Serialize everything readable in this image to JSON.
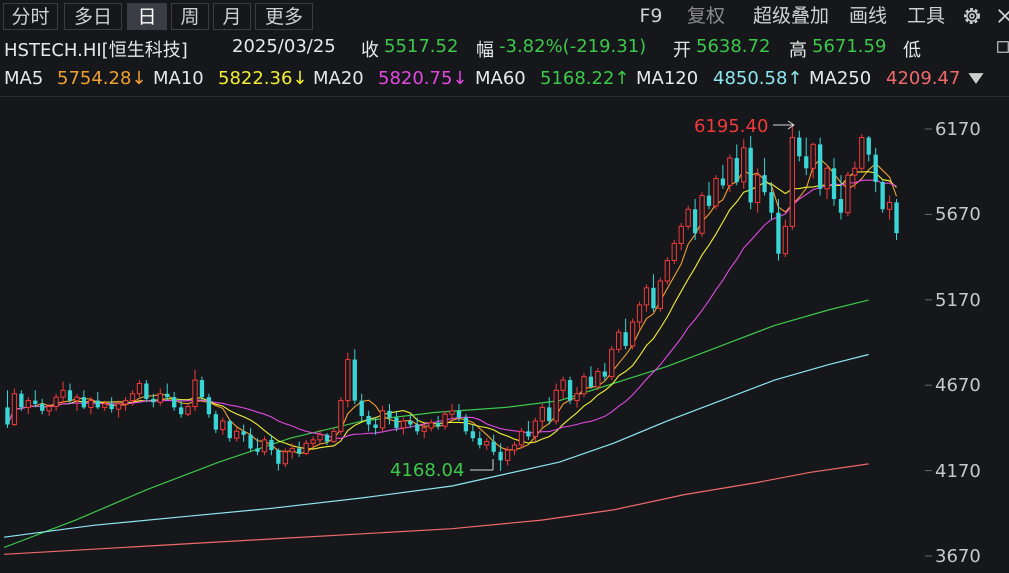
{
  "toolbar": {
    "period_tabs": [
      {
        "label": "分时",
        "active": false
      },
      {
        "label": "多日",
        "active": false
      },
      {
        "label": "日",
        "active": true
      },
      {
        "label": "周",
        "active": false
      },
      {
        "label": "月",
        "active": false
      },
      {
        "label": "更多",
        "active": false
      }
    ],
    "right_buttons": [
      {
        "label": "F9",
        "dim": false
      },
      {
        "label": "复权",
        "dim": true
      },
      {
        "label": "超级叠加",
        "dim": false
      },
      {
        "label": "画线",
        "dim": false
      },
      {
        "label": "工具",
        "dim": false
      }
    ],
    "gear_icon": "gear-icon",
    "close_icon": "close-icon"
  },
  "quote": {
    "symbol": "HSTECH.HI[恒生科技]",
    "date": "2025/03/25",
    "close_label": "收",
    "close": "5517.52",
    "change_label": "幅",
    "change": "-3.82%(-219.31)",
    "open_label": "开",
    "open": "5638.72",
    "high_label": "高",
    "high": "5671.59",
    "low_label": "低",
    "expand_icon": "expand-icon"
  },
  "ma_line": [
    {
      "label": "MA5",
      "value": "5754.28↓",
      "color": "#f0a030"
    },
    {
      "label": "MA10",
      "value": "5822.36↓",
      "color": "#f2ee34"
    },
    {
      "label": "MA20",
      "value": "5820.75↓",
      "color": "#e04ae0"
    },
    {
      "label": "MA60",
      "value": "5168.22↑",
      "color": "#3cc84a"
    },
    {
      "label": "MA120",
      "value": "4850.58↑",
      "color": "#8ee6f0"
    },
    {
      "label": "MA250",
      "value": "4209.47",
      "color": "#f06a6a"
    }
  ],
  "ma_dropdown_icon": "dropdown-triangle-icon",
  "chart_data": {
    "type": "candlestick",
    "y_ticks": [
      "6170",
      "5670",
      "5170",
      "4670",
      "4170",
      "3670"
    ],
    "ylim": [
      3670,
      6170
    ],
    "up_color": "#f03a3a",
    "down_color": "#3ad6d6",
    "annotations": [
      {
        "text": "6195.40",
        "color": "#f03a3a"
      },
      {
        "text": "4168.04",
        "color": "#3cc84a"
      }
    ],
    "ohlc": [
      [
        4540,
        4640,
        4420,
        4440
      ],
      [
        4440,
        4650,
        4430,
        4620
      ],
      [
        4620,
        4640,
        4520,
        4540
      ],
      [
        4540,
        4600,
        4500,
        4580
      ],
      [
        4580,
        4640,
        4540,
        4560
      ],
      [
        4560,
        4590,
        4500,
        4520
      ],
      [
        4520,
        4560,
        4490,
        4545
      ],
      [
        4545,
        4620,
        4520,
        4600
      ],
      [
        4600,
        4690,
        4560,
        4640
      ],
      [
        4640,
        4680,
        4560,
        4580
      ],
      [
        4580,
        4620,
        4520,
        4600
      ],
      [
        4600,
        4640,
        4530,
        4540
      ],
      [
        4540,
        4600,
        4500,
        4580
      ],
      [
        4580,
        4630,
        4530,
        4540
      ],
      [
        4540,
        4580,
        4520,
        4560
      ],
      [
        4560,
        4600,
        4510,
        4530
      ],
      [
        4530,
        4580,
        4480,
        4560
      ],
      [
        4560,
        4600,
        4520,
        4580
      ],
      [
        4580,
        4640,
        4550,
        4620
      ],
      [
        4620,
        4700,
        4600,
        4680
      ],
      [
        4680,
        4700,
        4570,
        4590
      ],
      [
        4590,
        4620,
        4540,
        4570
      ],
      [
        4570,
        4650,
        4550,
        4620
      ],
      [
        4620,
        4680,
        4580,
        4600
      ],
      [
        4600,
        4630,
        4520,
        4540
      ],
      [
        4540,
        4580,
        4480,
        4500
      ],
      [
        4500,
        4560,
        4490,
        4545
      ],
      [
        4545,
        4760,
        4520,
        4700
      ],
      [
        4700,
        4720,
        4580,
        4600
      ],
      [
        4600,
        4620,
        4480,
        4500
      ],
      [
        4500,
        4520,
        4390,
        4410
      ],
      [
        4410,
        4480,
        4380,
        4460
      ],
      [
        4460,
        4470,
        4340,
        4360
      ],
      [
        4360,
        4420,
        4340,
        4400
      ],
      [
        4400,
        4440,
        4340,
        4380
      ],
      [
        4380,
        4420,
        4280,
        4300
      ],
      [
        4300,
        4360,
        4260,
        4280
      ],
      [
        4280,
        4370,
        4260,
        4350
      ],
      [
        4350,
        4380,
        4260,
        4290
      ],
      [
        4290,
        4300,
        4170,
        4210
      ],
      [
        4210,
        4300,
        4190,
        4280
      ],
      [
        4280,
        4330,
        4240,
        4300
      ],
      [
        4300,
        4340,
        4250,
        4270
      ],
      [
        4270,
        4350,
        4260,
        4330
      ],
      [
        4330,
        4370,
        4300,
        4350
      ],
      [
        4350,
        4410,
        4330,
        4380
      ],
      [
        4380,
        4390,
        4320,
        4340
      ],
      [
        4340,
        4420,
        4330,
        4400
      ],
      [
        4400,
        4600,
        4380,
        4580
      ],
      [
        4580,
        4860,
        4540,
        4820
      ],
      [
        4820,
        4880,
        4560,
        4580
      ],
      [
        4580,
        4620,
        4460,
        4490
      ],
      [
        4490,
        4520,
        4400,
        4440
      ],
      [
        4440,
        4480,
        4380,
        4420
      ],
      [
        4420,
        4550,
        4400,
        4520
      ],
      [
        4520,
        4560,
        4440,
        4480
      ],
      [
        4480,
        4520,
        4400,
        4420
      ],
      [
        4420,
        4480,
        4380,
        4460
      ],
      [
        4460,
        4500,
        4420,
        4440
      ],
      [
        4440,
        4480,
        4380,
        4400
      ],
      [
        4400,
        4440,
        4360,
        4420
      ],
      [
        4420,
        4470,
        4400,
        4450
      ],
      [
        4450,
        4490,
        4410,
        4430
      ],
      [
        4430,
        4520,
        4410,
        4500
      ],
      [
        4500,
        4560,
        4470,
        4520
      ],
      [
        4520,
        4560,
        4460,
        4480
      ],
      [
        4480,
        4500,
        4380,
        4400
      ],
      [
        4400,
        4440,
        4340,
        4360
      ],
      [
        4360,
        4400,
        4300,
        4320
      ],
      [
        4320,
        4360,
        4290,
        4340
      ],
      [
        4340,
        4380,
        4260,
        4280
      ],
      [
        4280,
        4330,
        4168,
        4230
      ],
      [
        4230,
        4310,
        4200,
        4290
      ],
      [
        4290,
        4340,
        4260,
        4320
      ],
      [
        4320,
        4420,
        4300,
        4400
      ],
      [
        4400,
        4460,
        4350,
        4370
      ],
      [
        4370,
        4480,
        4340,
        4460
      ],
      [
        4460,
        4560,
        4420,
        4540
      ],
      [
        4540,
        4600,
        4440,
        4460
      ],
      [
        4460,
        4680,
        4440,
        4640
      ],
      [
        4640,
        4720,
        4590,
        4700
      ],
      [
        4700,
        4720,
        4560,
        4580
      ],
      [
        4580,
        4660,
        4540,
        4620
      ],
      [
        4620,
        4740,
        4600,
        4720
      ],
      [
        4720,
        4780,
        4650,
        4660
      ],
      [
        4660,
        4770,
        4640,
        4750
      ],
      [
        4750,
        4800,
        4700,
        4720
      ],
      [
        4720,
        4900,
        4700,
        4880
      ],
      [
        4880,
        5000,
        4860,
        4980
      ],
      [
        4980,
        5060,
        4880,
        4900
      ],
      [
        4900,
        5060,
        4880,
        5040
      ],
      [
        5040,
        5160,
        5000,
        5140
      ],
      [
        5140,
        5260,
        5100,
        5240
      ],
      [
        5240,
        5320,
        5100,
        5120
      ],
      [
        5120,
        5300,
        5100,
        5280
      ],
      [
        5280,
        5420,
        5260,
        5400
      ],
      [
        5400,
        5520,
        5380,
        5500
      ],
      [
        5500,
        5620,
        5460,
        5600
      ],
      [
        5600,
        5720,
        5580,
        5700
      ],
      [
        5700,
        5760,
        5520,
        5560
      ],
      [
        5560,
        5800,
        5540,
        5780
      ],
      [
        5780,
        5860,
        5700,
        5720
      ],
      [
        5720,
        5900,
        5700,
        5880
      ],
      [
        5880,
        5960,
        5820,
        5840
      ],
      [
        5840,
        6020,
        5800,
        6000
      ],
      [
        6000,
        6080,
        5840,
        5860
      ],
      [
        5860,
        6110,
        5820,
        6060
      ],
      [
        6060,
        6130,
        5700,
        5740
      ],
      [
        5740,
        5940,
        5680,
        5900
      ],
      [
        5900,
        6000,
        5780,
        5800
      ],
      [
        5800,
        5860,
        5640,
        5680
      ],
      [
        5680,
        5760,
        5400,
        5440
      ],
      [
        5440,
        5640,
        5420,
        5600
      ],
      [
        5600,
        6195,
        5580,
        6120
      ],
      [
        6120,
        6160,
        5980,
        6010
      ],
      [
        6010,
        6120,
        5900,
        5940
      ],
      [
        5940,
        6090,
        5880,
        6080
      ],
      [
        6080,
        6120,
        5780,
        5820
      ],
      [
        5820,
        5960,
        5760,
        5940
      ],
      [
        5940,
        6000,
        5720,
        5760
      ],
      [
        5760,
        5900,
        5640,
        5680
      ],
      [
        5680,
        5920,
        5660,
        5900
      ],
      [
        5900,
        5980,
        5820,
        5940
      ],
      [
        5940,
        6140,
        5920,
        6120
      ],
      [
        6120,
        6130,
        5980,
        6020
      ],
      [
        6020,
        6060,
        5800,
        5860
      ],
      [
        5860,
        5870,
        5680,
        5700
      ],
      [
        5700,
        5780,
        5640,
        5740
      ],
      [
        5740,
        5760,
        5520,
        5560
      ]
    ],
    "ma_curves": {
      "MA5": {
        "color": "#f0a030"
      },
      "MA10": {
        "color": "#f2ee34"
      },
      "MA20": {
        "color": "#e04ae0"
      },
      "MA60": {
        "color": "#3cc84a",
        "points": [
          [
            0,
            3720
          ],
          [
            0.08,
            3880
          ],
          [
            0.16,
            4060
          ],
          [
            0.24,
            4220
          ],
          [
            0.32,
            4360
          ],
          [
            0.4,
            4460
          ],
          [
            0.48,
            4510
          ],
          [
            0.56,
            4540
          ],
          [
            0.62,
            4580
          ],
          [
            0.68,
            4680
          ],
          [
            0.74,
            4780
          ],
          [
            0.8,
            4900
          ],
          [
            0.86,
            5020
          ],
          [
            0.92,
            5110
          ],
          [
            0.965,
            5168
          ]
        ]
      },
      "MA120": {
        "color": "#8ee6f0",
        "points": [
          [
            0,
            3780
          ],
          [
            0.1,
            3850
          ],
          [
            0.2,
            3900
          ],
          [
            0.3,
            3950
          ],
          [
            0.4,
            4010
          ],
          [
            0.5,
            4080
          ],
          [
            0.56,
            4150
          ],
          [
            0.62,
            4220
          ],
          [
            0.68,
            4330
          ],
          [
            0.74,
            4460
          ],
          [
            0.8,
            4580
          ],
          [
            0.86,
            4700
          ],
          [
            0.92,
            4790
          ],
          [
            0.965,
            4850
          ]
        ]
      },
      "MA250": {
        "color": "#f06a6a",
        "points": [
          [
            0,
            3680
          ],
          [
            0.1,
            3710
          ],
          [
            0.2,
            3740
          ],
          [
            0.3,
            3770
          ],
          [
            0.4,
            3800
          ],
          [
            0.5,
            3830
          ],
          [
            0.6,
            3880
          ],
          [
            0.68,
            3940
          ],
          [
            0.76,
            4030
          ],
          [
            0.84,
            4100
          ],
          [
            0.9,
            4160
          ],
          [
            0.965,
            4209
          ]
        ]
      }
    }
  }
}
